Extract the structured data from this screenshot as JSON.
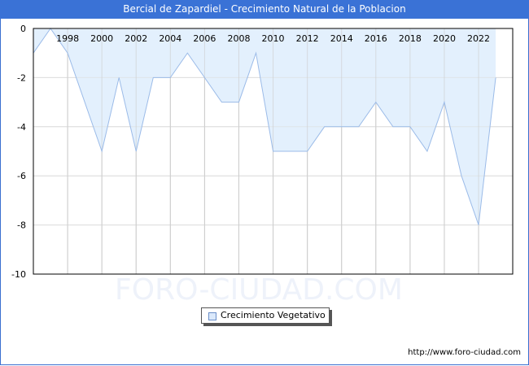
{
  "title": "Bercial de Zapardiel - Crecimiento Natural de la Poblacion",
  "legend": {
    "label": "Crecimiento Vegetativo",
    "swatch_color": "#dbe9fb"
  },
  "watermark": "FORO-CIUDAD.COM",
  "footer_url": "http://www.foro-ciudad.com",
  "colors": {
    "title_bar": "#3a72d6",
    "fill": "#e3f0fd",
    "line": "#9bbbe8",
    "grid": "#dddddd"
  },
  "chart_data": {
    "type": "area",
    "title": "Bercial de Zapardiel - Crecimiento Natural de la Poblacion",
    "xlabel": "",
    "ylabel": "",
    "x": [
      1996,
      1997,
      1998,
      1999,
      2000,
      2001,
      2002,
      2003,
      2004,
      2005,
      2006,
      2007,
      2008,
      2009,
      2010,
      2011,
      2012,
      2013,
      2014,
      2015,
      2016,
      2017,
      2018,
      2019,
      2020,
      2021,
      2022,
      2023
    ],
    "series": [
      {
        "name": "Crecimiento Vegetativo",
        "values": [
          -1,
          0,
          -1,
          -3,
          -5,
          -2,
          -5,
          -2,
          -2,
          -1,
          -2,
          -3,
          -3,
          -1,
          -5,
          -5,
          -5,
          -4,
          -4,
          -4,
          -3,
          -4,
          -4,
          -5,
          -3,
          -6,
          -8,
          -2
        ]
      }
    ],
    "x_tick_labels": [
      "1998",
      "2000",
      "2002",
      "2004",
      "2006",
      "2008",
      "2010",
      "2012",
      "2014",
      "2016",
      "2018",
      "2020",
      "2022"
    ],
    "y_tick_labels": [
      "0",
      "-2",
      "-4",
      "-6",
      "-8",
      "-10"
    ],
    "ylim": [
      -10,
      0
    ],
    "grid": true,
    "legend_position": "bottom-center"
  }
}
